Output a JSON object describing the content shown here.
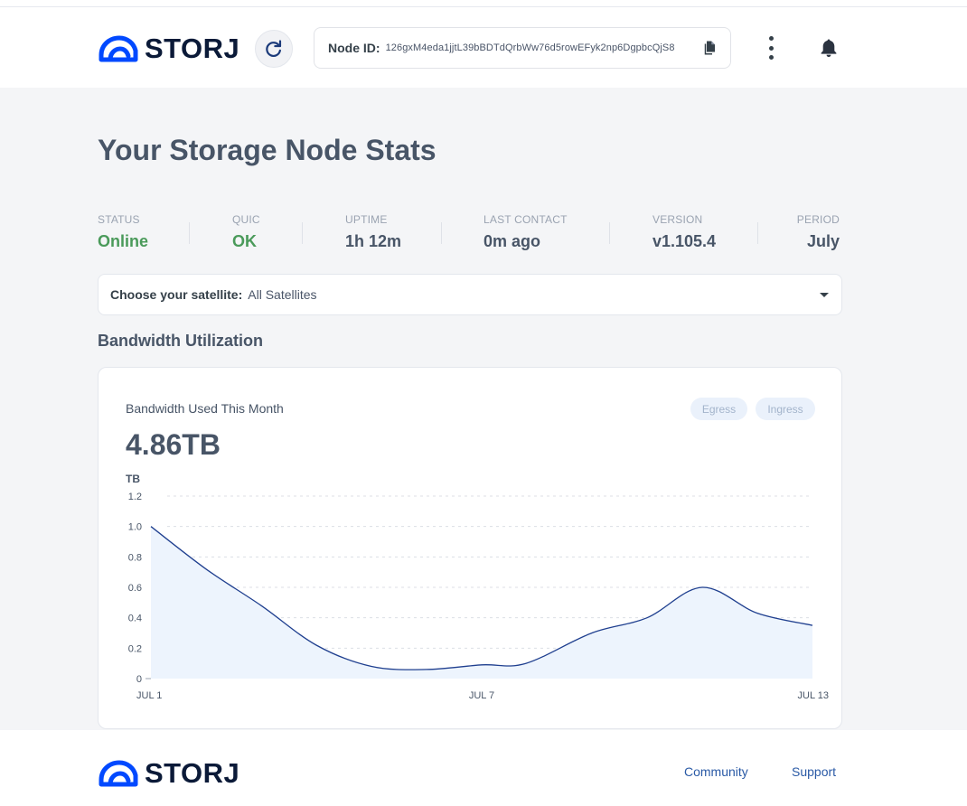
{
  "brand": {
    "name": "STORJ",
    "color": "#0149ff"
  },
  "header": {
    "node_id_label": "Node ID:",
    "node_id": "126gxM4eda1jjtL39bBDTdQrbWw76d5rowEFyk2np6DgpbcQjS8"
  },
  "page_title": "Your Storage Node Stats",
  "stats": {
    "status": {
      "label": "STATUS",
      "value": "Online"
    },
    "quic": {
      "label": "QUIC",
      "value": "OK"
    },
    "uptime": {
      "label": "UPTIME",
      "value": "1h 12m"
    },
    "last_contact": {
      "label": "LAST CONTACT",
      "value": "0m ago"
    },
    "version": {
      "label": "VERSION",
      "value": "v1.105.4"
    },
    "period": {
      "label": "PERIOD",
      "value": "July"
    }
  },
  "satellite": {
    "label": "Choose your satellite:",
    "value": "All Satellites"
  },
  "section_title": "Bandwidth Utilization",
  "bandwidth_card": {
    "title": "Bandwidth Used This Month",
    "total": "4.86TB",
    "legend": {
      "egress": "Egress",
      "ingress": "Ingress"
    }
  },
  "chart_data": {
    "type": "area",
    "ylabel": "TB",
    "y_ticks": [
      "1.2",
      "1.0",
      "0.8",
      "0.6",
      "0.4",
      "0.2",
      "0"
    ],
    "ylim": [
      0,
      1.2
    ],
    "x_tick_labels": [
      "JUL 1",
      "JUL 7",
      "JUL 13"
    ],
    "x_tick_days": [
      1,
      7,
      13
    ],
    "x_range": [
      1,
      13
    ],
    "series": [
      {
        "x": [
          1,
          2,
          3,
          4,
          5,
          6,
          7,
          7.8,
          9,
          10,
          11,
          12,
          13
        ],
        "values": [
          1.0,
          0.72,
          0.48,
          0.22,
          0.08,
          0.06,
          0.09,
          0.1,
          0.3,
          0.4,
          0.6,
          0.43,
          0.35
        ]
      }
    ],
    "colors": {
      "line": "#1f3f8f",
      "fill": "#edf4fd",
      "grid": "#dcdfe5"
    },
    "grid": true
  },
  "footer": {
    "links": {
      "community": "Community",
      "support": "Support"
    }
  }
}
